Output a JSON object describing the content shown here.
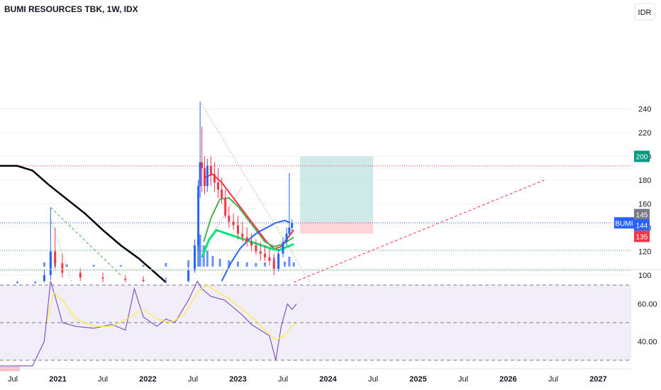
{
  "header": {
    "title": "BUMI RESOURCES TBK, 1W, IDX",
    "currency_button": "IDR"
  },
  "colors": {
    "up": "#2962ff",
    "down": "#f23645",
    "ma_black": "#000000",
    "ma_red": "#f23645",
    "ma_green": "#4caf50",
    "ma_bright_green": "#00e676",
    "bollinger": "#2962ff",
    "rsi": "#7e57c2",
    "rsi_ma": "#ffeb3b",
    "target_zone": "#b2dfdb",
    "stop_zone": "#ffcdd2",
    "resistance": "#f23645",
    "support": "#4caf50",
    "price_line": "#2962ff"
  },
  "chart_data": [
    {
      "type": "candlestick",
      "symbol": "BUMI",
      "ylim": [
        90,
        250
      ],
      "y_ticks": [
        100,
        120,
        140,
        160,
        180,
        200,
        220,
        240
      ],
      "x_ticks": [
        "Jul",
        "2021",
        "Jul",
        "2022",
        "Jul",
        "2023",
        "Jul",
        "2024",
        "Jul",
        "2025",
        "Jul",
        "2026",
        "Jul",
        "2027"
      ],
      "price_labels": [
        {
          "label": "200",
          "value": 200,
          "color": "#089981"
        },
        {
          "label": "145",
          "value": 145,
          "color": "#787b86"
        },
        {
          "label": "BUMI",
          "value": 144,
          "color": "#2962ff"
        },
        {
          "label": "144",
          "value": 144,
          "color": "#2962ff"
        },
        {
          "label": "135",
          "value": 135,
          "color": "#f23645"
        }
      ],
      "horizontal_levels": [
        {
          "value": 192,
          "kind": "resistance"
        },
        {
          "value": 121,
          "kind": "support"
        },
        {
          "value": 104,
          "kind": "support"
        },
        {
          "value": 144,
          "kind": "last_price"
        }
      ],
      "position": {
        "entry": 145,
        "target": 200,
        "stop": 135,
        "from": 2023.69,
        "to": 2024.5
      },
      "candles_approx": [
        [
          2020.55,
          94,
          95,
          93,
          94
        ],
        [
          2020.75,
          94,
          95,
          93,
          94
        ],
        [
          2020.85,
          95,
          105,
          94,
          100
        ],
        [
          2020.92,
          100,
          157,
          96,
          120
        ],
        [
          2020.97,
          120,
          140,
          105,
          110
        ],
        [
          2021.05,
          110,
          118,
          98,
          102
        ],
        [
          2021.25,
          102,
          106,
          95,
          98
        ],
        [
          2021.5,
          98,
          102,
          94,
          97
        ],
        [
          2021.75,
          97,
          100,
          94,
          96
        ],
        [
          2021.95,
          96,
          99,
          94,
          95
        ],
        [
          2022.2,
          95,
          98,
          93,
          95
        ],
        [
          2022.45,
          95,
          108,
          94,
          104
        ],
        [
          2022.52,
          104,
          130,
          102,
          125
        ],
        [
          2022.56,
          125,
          180,
          120,
          175
        ],
        [
          2022.58,
          175,
          246,
          165,
          195
        ],
        [
          2022.6,
          195,
          225,
          170,
          190
        ],
        [
          2022.63,
          190,
          200,
          168,
          175
        ],
        [
          2022.66,
          175,
          198,
          170,
          192
        ],
        [
          2022.7,
          192,
          200,
          175,
          185
        ],
        [
          2022.74,
          185,
          195,
          170,
          178
        ],
        [
          2022.78,
          178,
          190,
          165,
          172
        ],
        [
          2022.82,
          172,
          182,
          160,
          165
        ],
        [
          2022.86,
          165,
          172,
          148,
          150
        ],
        [
          2022.9,
          150,
          158,
          140,
          145
        ],
        [
          2022.95,
          145,
          152,
          138,
          142
        ],
        [
          2023.0,
          142,
          150,
          130,
          135
        ],
        [
          2023.05,
          135,
          145,
          128,
          132
        ],
        [
          2023.1,
          132,
          140,
          124,
          128
        ],
        [
          2023.15,
          128,
          135,
          120,
          125
        ],
        [
          2023.2,
          125,
          130,
          117,
          120
        ],
        [
          2023.25,
          120,
          128,
          112,
          118
        ],
        [
          2023.3,
          118,
          125,
          112,
          115
        ],
        [
          2023.35,
          115,
          122,
          108,
          112
        ],
        [
          2023.4,
          112,
          118,
          100,
          105
        ],
        [
          2023.45,
          105,
          122,
          103,
          118
        ],
        [
          2023.5,
          118,
          132,
          115,
          128
        ],
        [
          2023.54,
          128,
          140,
          125,
          135
        ],
        [
          2023.57,
          135,
          186,
          132,
          140
        ],
        [
          2023.6,
          140,
          147,
          137,
          144
        ]
      ],
      "series": [
        {
          "name": "",
          "color": "#000000",
          "points": [
            [
              2020.0,
              192
            ],
            [
              2020.55,
              192
            ],
            [
              2020.72,
              188
            ],
            [
              2020.9,
              176
            ],
            [
              2021.1,
              164
            ],
            [
              2021.3,
              152
            ],
            [
              2021.5,
              138
            ],
            [
              2021.7,
              125
            ],
            [
              2021.9,
              114
            ],
            [
              2022.05,
              104
            ],
            [
              2022.2,
              94
            ]
          ]
        },
        {
          "name": "",
          "color": "#f23645",
          "points": [
            [
              2022.62,
              182
            ],
            [
              2022.72,
              185
            ],
            [
              2022.82,
              178
            ],
            [
              2022.92,
              168
            ],
            [
              2023.02,
              158
            ],
            [
              2023.12,
              148
            ],
            [
              2023.22,
              138
            ],
            [
              2023.32,
              128
            ],
            [
              2023.4,
              122
            ],
            [
              2023.48,
              124
            ],
            [
              2023.56,
              132
            ],
            [
              2023.62,
              138
            ]
          ]
        },
        {
          "name": "",
          "color": "#4caf50",
          "points": [
            [
              2022.62,
              128
            ],
            [
              2022.7,
              148
            ],
            [
              2022.8,
              164
            ],
            [
              2022.9,
              165
            ],
            [
              2023.0,
              158
            ],
            [
              2023.1,
              148
            ],
            [
              2023.2,
              138
            ],
            [
              2023.3,
              128
            ],
            [
              2023.4,
              124
            ],
            [
              2023.5,
              126
            ],
            [
              2023.58,
              130
            ],
            [
              2023.62,
              132
            ]
          ]
        },
        {
          "name": "",
          "color": "#00e676",
          "points": [
            [
              2022.6,
              115
            ],
            [
              2022.68,
              130
            ],
            [
              2022.76,
              138
            ],
            [
              2023.38,
              122
            ],
            [
              2023.46,
              121
            ],
            [
              2023.55,
              124
            ],
            [
              2023.62,
              126
            ]
          ]
        },
        {
          "name": "",
          "color": "#2962ff",
          "points": [
            [
              2022.82,
              95
            ],
            [
              2022.92,
              110
            ],
            [
              2023.02,
              122
            ],
            [
              2023.12,
              130
            ],
            [
              2023.22,
              136
            ],
            [
              2023.32,
              140
            ],
            [
              2023.42,
              144
            ],
            [
              2023.52,
              146
            ],
            [
              2023.58,
              144
            ]
          ]
        }
      ],
      "trendlines": [
        {
          "color": "#4caf50",
          "style": "dashed",
          "points": [
            [
              2020.92,
              157
            ],
            [
              2021.7,
              100
            ]
          ]
        },
        {
          "color": "#4caf50",
          "style": "dotted",
          "points": [
            [
              2022.58,
              246
            ],
            [
              2023.8,
              94
            ]
          ]
        },
        {
          "color": "#f23645",
          "style": "dashed",
          "points": [
            [
              2023.62,
              94
            ],
            [
              2026.4,
              180
            ]
          ]
        },
        {
          "color": "#f23645",
          "style": "dotted",
          "points": [
            [
              2022.6,
              120
            ],
            [
              2023.05,
              175
            ]
          ]
        },
        {
          "color": "#4caf50",
          "style": "dotted",
          "points": [
            [
              2020.92,
              148
            ],
            [
              2021.15,
              95
            ]
          ]
        }
      ],
      "volume": [
        [
          2020.85,
          12
        ],
        [
          2020.92,
          38
        ],
        [
          2020.97,
          20
        ],
        [
          2021.1,
          6
        ],
        [
          2021.4,
          5
        ],
        [
          2021.7,
          4
        ],
        [
          2021.95,
          5
        ],
        [
          2022.2,
          10
        ],
        [
          2022.45,
          18
        ],
        [
          2022.52,
          40
        ],
        [
          2022.56,
          75
        ],
        [
          2022.58,
          90
        ],
        [
          2022.62,
          60
        ],
        [
          2022.66,
          45
        ],
        [
          2022.72,
          30
        ],
        [
          2022.8,
          22
        ],
        [
          2022.9,
          18
        ],
        [
          2023.0,
          14
        ],
        [
          2023.1,
          12
        ],
        [
          2023.2,
          10
        ],
        [
          2023.3,
          12
        ],
        [
          2023.4,
          25
        ],
        [
          2023.45,
          16
        ],
        [
          2023.52,
          14
        ],
        [
          2023.57,
          28
        ],
        [
          2023.62,
          12
        ]
      ]
    },
    {
      "type": "line",
      "name": "RSI",
      "ylim": [
        25,
        75
      ],
      "y_ticks": [
        40.0,
        60.0
      ],
      "y_tick_labels": [
        "40.00",
        "60.00"
      ],
      "bands": [
        70,
        50,
        30
      ],
      "series": [
        {
          "name": "",
          "color": "#7e57c2",
          "points": [
            [
              2020.0,
              27
            ],
            [
              2020.55,
              27
            ],
            [
              2020.72,
              27
            ],
            [
              2020.85,
              40
            ],
            [
              2020.92,
              72
            ],
            [
              2020.97,
              64
            ],
            [
              2021.05,
              50
            ],
            [
              2021.2,
              48
            ],
            [
              2021.4,
              47
            ],
            [
              2021.6,
              49
            ],
            [
              2021.75,
              46
            ],
            [
              2021.85,
              68
            ],
            [
              2021.95,
              53
            ],
            [
              2022.1,
              48
            ],
            [
              2022.2,
              52
            ],
            [
              2022.3,
              50
            ],
            [
              2022.45,
              62
            ],
            [
              2022.55,
              72
            ],
            [
              2022.6,
              68
            ],
            [
              2022.7,
              64
            ],
            [
              2022.85,
              62
            ],
            [
              2022.95,
              58
            ],
            [
              2023.05,
              54
            ],
            [
              2023.15,
              49
            ],
            [
              2023.25,
              46
            ],
            [
              2023.35,
              43
            ],
            [
              2023.42,
              30
            ],
            [
              2023.48,
              48
            ],
            [
              2023.55,
              60
            ],
            [
              2023.6,
              57
            ],
            [
              2023.65,
              60
            ]
          ]
        },
        {
          "name": "",
          "color": "#ffeb3b",
          "points": [
            [
              2020.88,
              50
            ],
            [
              2020.95,
              66
            ],
            [
              2021.05,
              62
            ],
            [
              2021.2,
              52
            ],
            [
              2021.4,
              48
            ],
            [
              2021.6,
              48
            ],
            [
              2021.8,
              53
            ],
            [
              2021.95,
              57
            ],
            [
              2022.1,
              52
            ],
            [
              2022.25,
              50
            ],
            [
              2022.4,
              54
            ],
            [
              2022.55,
              66
            ],
            [
              2022.65,
              70
            ],
            [
              2022.75,
              67
            ],
            [
              2022.9,
              63
            ],
            [
              2023.05,
              57
            ],
            [
              2023.2,
              51
            ],
            [
              2023.3,
              46
            ],
            [
              2023.42,
              41
            ],
            [
              2023.52,
              43
            ],
            [
              2023.6,
              48
            ],
            [
              2023.66,
              50
            ]
          ]
        }
      ]
    }
  ]
}
